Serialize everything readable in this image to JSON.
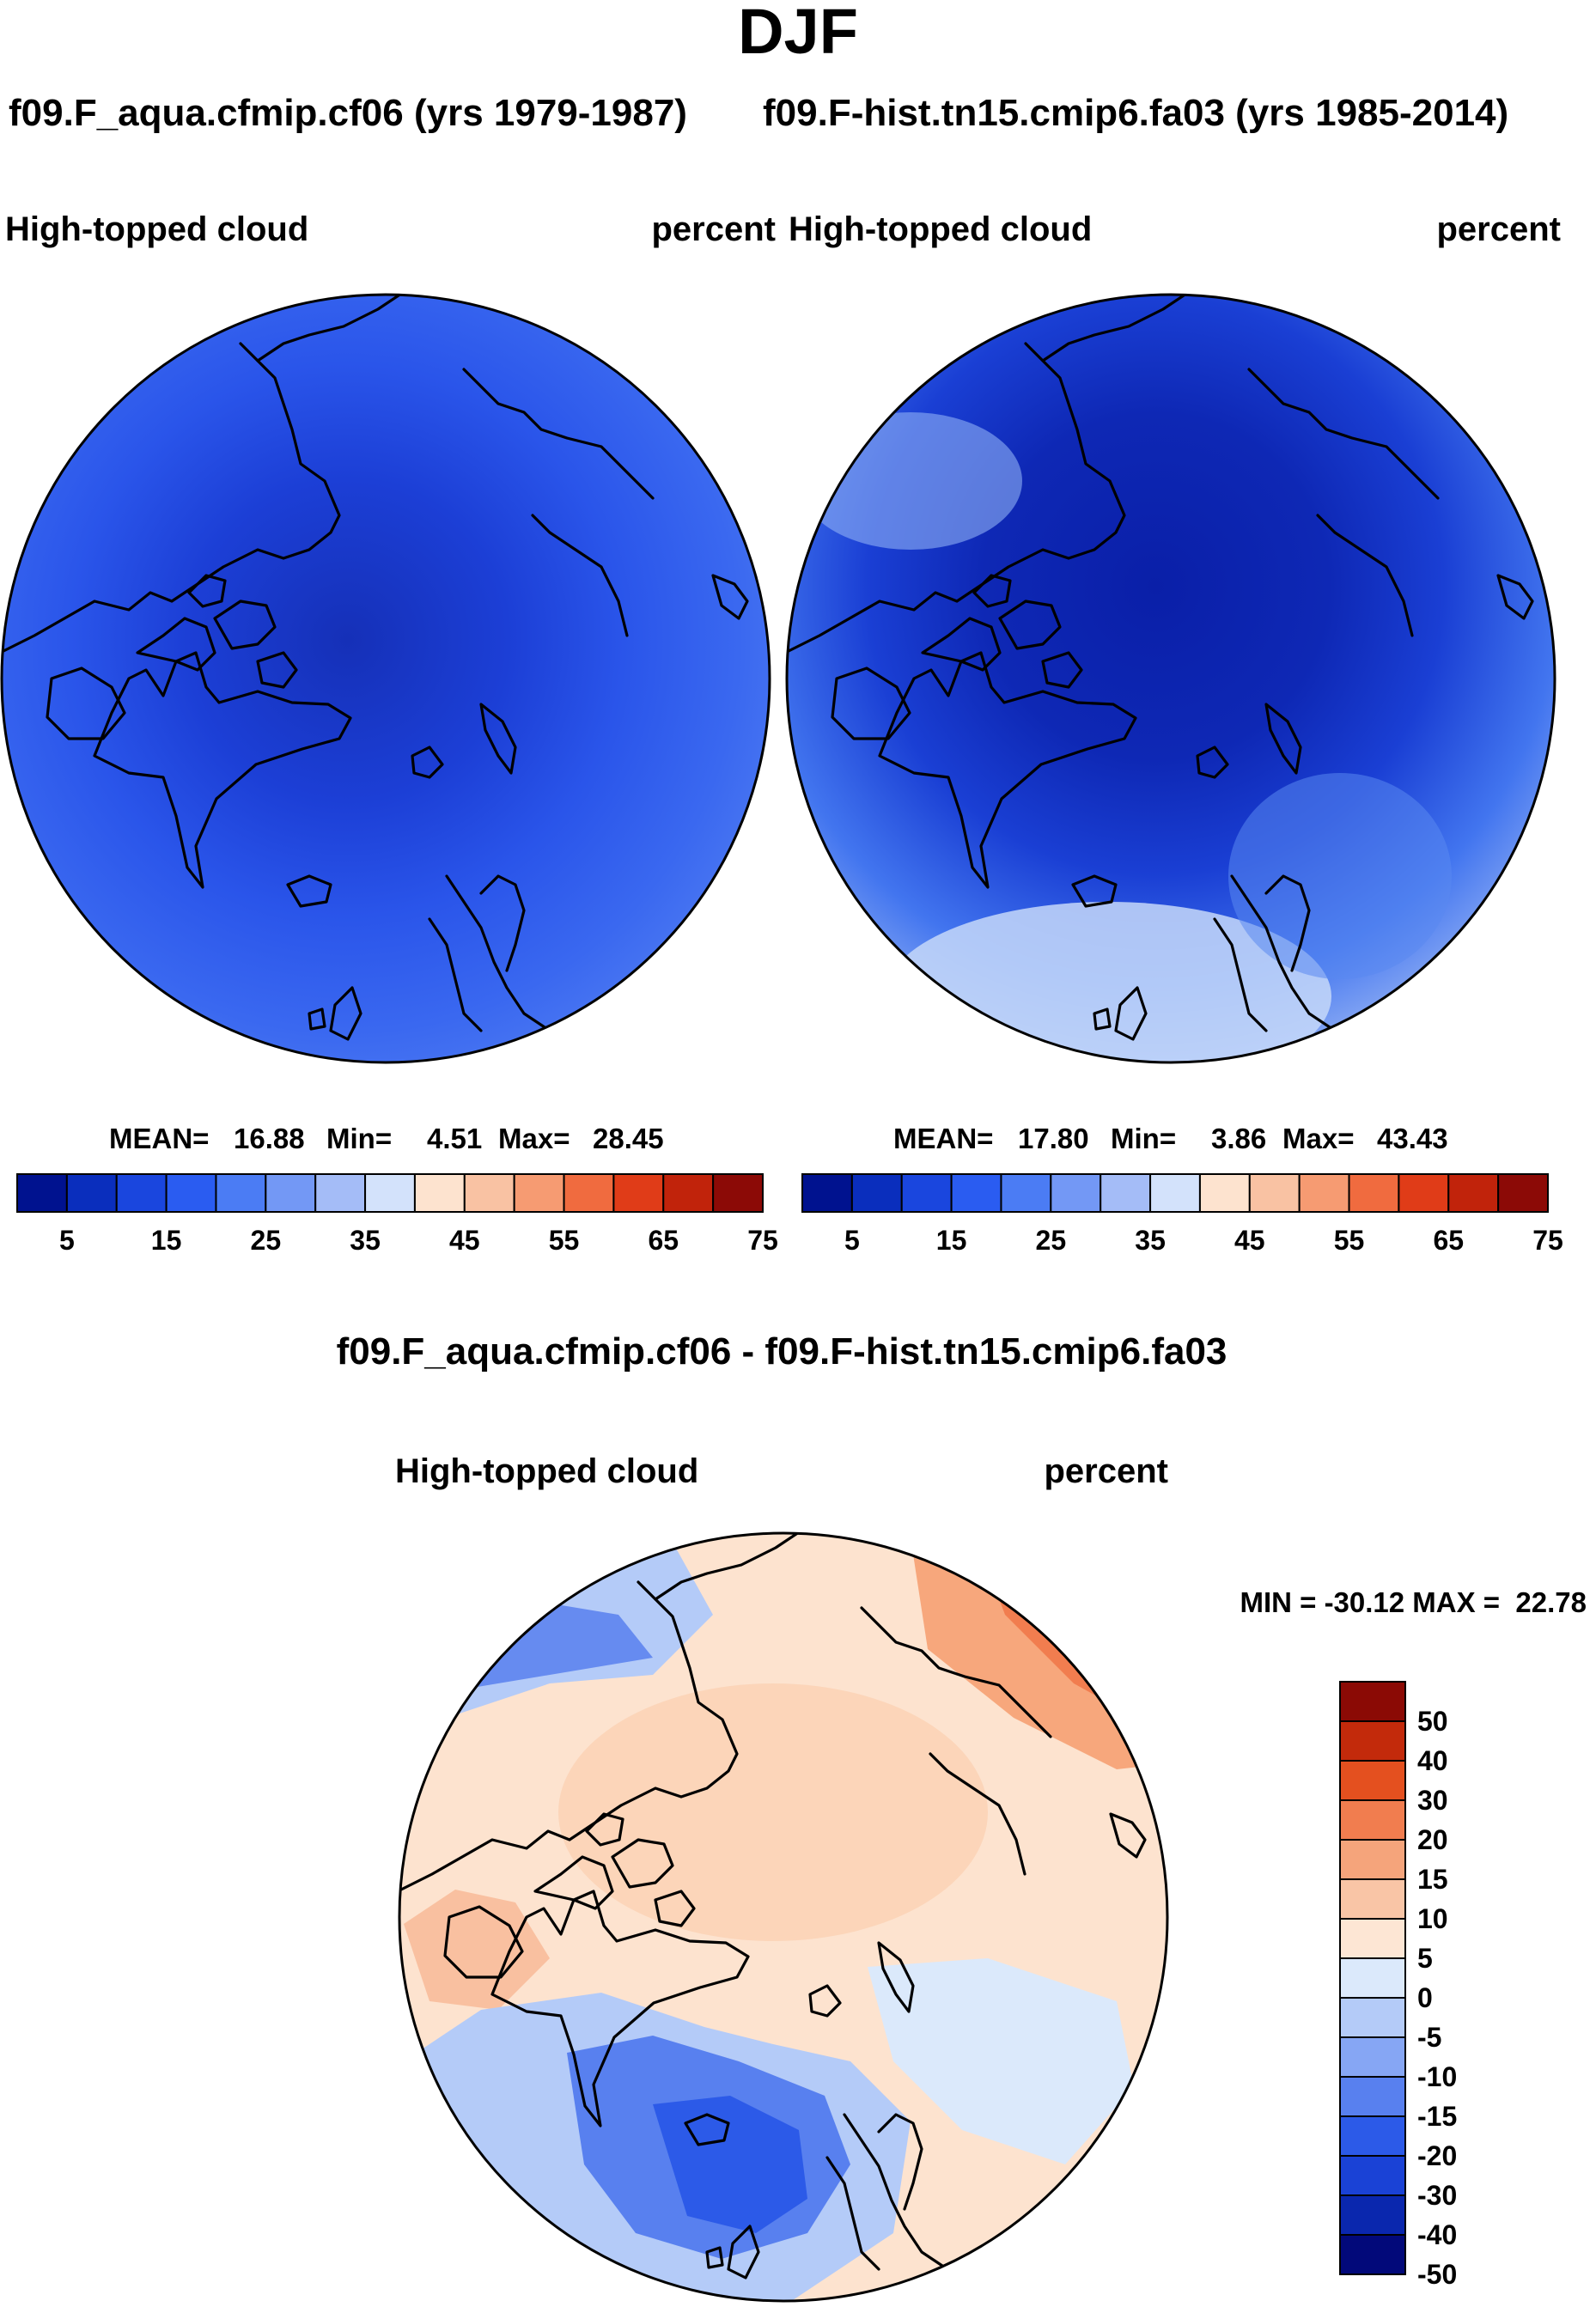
{
  "figure": {
    "season": "DJF",
    "case_a": "f09.F_aqua.cfmip.cf06 (yrs 1979-1987)",
    "case_b": "f09.F-hist.tn15.cmip6.fa03 (yrs 1985-2014)",
    "diff_title": "f09.F_aqua.cfmip.cf06 - f09.F-hist.tn15.cmip6.fa03"
  },
  "chart_data": [
    {
      "type": "heatmap",
      "projection": "north polar stereographic",
      "variable": "High-topped cloud",
      "units": "percent",
      "case": "f09.F_aqua.cfmip.cf06 (yrs 1979-1987)",
      "stats": {
        "mean_label": "MEAN=",
        "mean": "16.88",
        "min_label": "Min=",
        "min": "4.51",
        "max_label": "Max=",
        "max": "28.45"
      },
      "levels": [
        5,
        10,
        15,
        20,
        25,
        30,
        35,
        40,
        45,
        50,
        55,
        60,
        65,
        70,
        75
      ],
      "colorbar_ticks": [
        "5",
        "15",
        "25",
        "35",
        "45",
        "55",
        "65",
        "75"
      ],
      "colors": [
        "#00128f",
        "#0a2ebd",
        "#1a46de",
        "#2a5cf1",
        "#4b7cf4",
        "#7398f5",
        "#a4bcf7",
        "#d3e2fb",
        "#fde3cf",
        "#f9c2a3",
        "#f69b72",
        "#f06b3f",
        "#e03c18",
        "#c1230b",
        "#8c0a06"
      ],
      "field": [
        {
          "r": 0.98,
          "v": 22
        },
        {
          "r": 0.8,
          "v": 19
        },
        {
          "r": 0.6,
          "v": 16
        },
        {
          "r": 0.4,
          "v": 13
        },
        {
          "r": 0.22,
          "v": 11
        }
      ]
    },
    {
      "type": "heatmap",
      "projection": "north polar stereographic",
      "variable": "High-topped cloud",
      "units": "percent",
      "case": "f09.F-hist.tn15.cmip6.fa03 (yrs 1985-2014)",
      "stats": {
        "mean_label": "MEAN=",
        "mean": "17.80",
        "min_label": "Min=",
        "min": "3.86",
        "max_label": "Max=",
        "max": "43.43"
      },
      "levels": [
        5,
        10,
        15,
        20,
        25,
        30,
        35,
        40,
        45,
        50,
        55,
        60,
        65,
        70,
        75
      ],
      "colorbar_ticks": [
        "5",
        "15",
        "25",
        "35",
        "45",
        "55",
        "65",
        "75"
      ],
      "colors": [
        "#00128f",
        "#0a2ebd",
        "#1a46de",
        "#2a5cf1",
        "#4b7cf4",
        "#7398f5",
        "#a4bcf7",
        "#d3e2fb",
        "#fde3cf",
        "#f9c2a3",
        "#f69b72",
        "#f06b3f",
        "#e03c18",
        "#c1230b",
        "#8c0a06"
      ],
      "field": [
        {
          "r": 0.98,
          "v": 27
        },
        {
          "r": 0.8,
          "v": 21
        },
        {
          "r": 0.6,
          "v": 14
        },
        {
          "r": 0.4,
          "v": 11
        },
        {
          "r": 0.22,
          "v": 8
        }
      ]
    },
    {
      "type": "heatmap",
      "projection": "north polar stereographic",
      "variable": "High-topped cloud",
      "units": "percent",
      "case": "f09.F_aqua.cfmip.cf06 - f09.F-hist.tn15.cmip6.fa03",
      "stats": {
        "label": "MIN = -30.12 MAX =  22.78",
        "min": -30.12,
        "max": 22.78
      },
      "levels": [
        -50,
        -40,
        -30,
        -20,
        -15,
        -10,
        -5,
        0,
        5,
        10,
        15,
        20,
        30,
        40,
        50
      ],
      "colorbar_ticks": [
        "-50",
        "-40",
        "-30",
        "-20",
        "-15",
        "-10",
        "-5",
        "0",
        "5",
        "10",
        "15",
        "20",
        "30",
        "40",
        "50"
      ],
      "colors": [
        "#02097a",
        "#0a27ae",
        "#1a42d6",
        "#2c5ae8",
        "#5880ef",
        "#86a6f4",
        "#b4cbf8",
        "#dbe9fb",
        "#fde6d4",
        "#f9c5a6",
        "#f5a47b",
        "#f17d4f",
        "#e4501f",
        "#c32a0b",
        "#8b0a05"
      ],
      "field": [
        {
          "r": 0.98,
          "v": -3
        },
        {
          "r": 0.8,
          "v": 1
        },
        {
          "r": 0.6,
          "v": 3
        },
        {
          "r": 0.4,
          "v": 4
        },
        {
          "r": 0.22,
          "v": 5
        }
      ]
    }
  ]
}
